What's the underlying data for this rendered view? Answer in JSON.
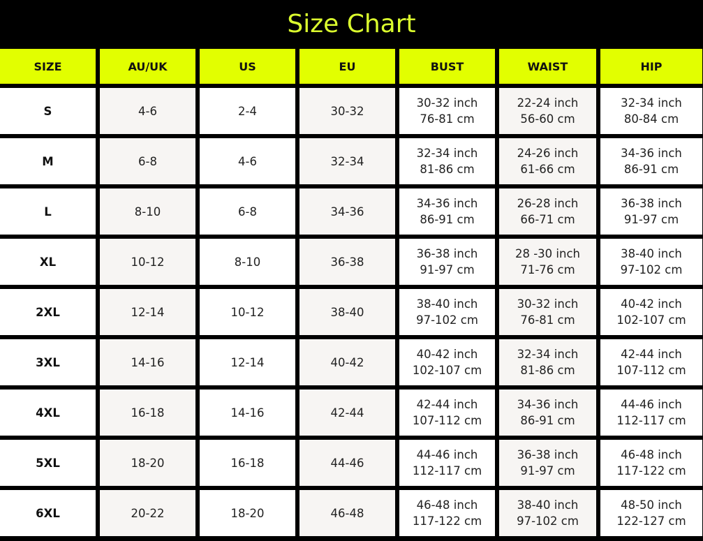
{
  "title": "Size Chart",
  "colors": {
    "accent": "#e2ff00",
    "title": "#dcff2e",
    "background": "#000000"
  },
  "headers": [
    "SIZE",
    "AU/UK",
    "US",
    "EU",
    "BUST",
    "WAIST",
    "HIP"
  ],
  "rows": [
    {
      "size": "S",
      "au_uk": "4-6",
      "us": "2-4",
      "eu": "30-32",
      "bust": [
        "30-32 inch",
        "76-81 cm"
      ],
      "waist": [
        "22-24 inch",
        "56-60 cm"
      ],
      "hip": [
        "32-34 inch",
        "80-84 cm"
      ]
    },
    {
      "size": "M",
      "au_uk": "6-8",
      "us": "4-6",
      "eu": "32-34",
      "bust": [
        "32-34 inch",
        "81-86 cm"
      ],
      "waist": [
        "24-26 inch",
        "61-66 cm"
      ],
      "hip": [
        "34-36 inch",
        "86-91 cm"
      ]
    },
    {
      "size": "L",
      "au_uk": "8-10",
      "us": "6-8",
      "eu": "34-36",
      "bust": [
        "34-36 inch",
        "86-91 cm"
      ],
      "waist": [
        "26-28 inch",
        "66-71 cm"
      ],
      "hip": [
        "36-38 inch",
        "91-97 cm"
      ]
    },
    {
      "size": "XL",
      "au_uk": "10-12",
      "us": "8-10",
      "eu": "36-38",
      "bust": [
        "36-38 inch",
        "91-97 cm"
      ],
      "waist": [
        "28 -30 inch",
        "71-76 cm"
      ],
      "hip": [
        "38-40 inch",
        "97-102 cm"
      ]
    },
    {
      "size": "2XL",
      "au_uk": "12-14",
      "us": "10-12",
      "eu": "38-40",
      "bust": [
        "38-40 inch",
        "97-102 cm"
      ],
      "waist": [
        "30-32 inch",
        "76-81 cm"
      ],
      "hip": [
        "40-42 inch",
        "102-107 cm"
      ]
    },
    {
      "size": "3XL",
      "au_uk": "14-16",
      "us": "12-14",
      "eu": "40-42",
      "bust": [
        "40-42 inch",
        "102-107 cm"
      ],
      "waist": [
        "32-34 inch",
        "81-86 cm"
      ],
      "hip": [
        "42-44 inch",
        "107-112 cm"
      ]
    },
    {
      "size": "4XL",
      "au_uk": "16-18",
      "us": "14-16",
      "eu": "42-44",
      "bust": [
        "42-44 inch",
        "107-112 cm"
      ],
      "waist": [
        "34-36 inch",
        "86-91 cm"
      ],
      "hip": [
        "44-46 inch",
        "112-117 cm"
      ]
    },
    {
      "size": "5XL",
      "au_uk": "18-20",
      "us": "16-18",
      "eu": "44-46",
      "bust": [
        "44-46 inch",
        "112-117 cm"
      ],
      "waist": [
        "36-38 inch",
        "91-97 cm"
      ],
      "hip": [
        "46-48 inch",
        "117-122 cm"
      ]
    },
    {
      "size": "6XL",
      "au_uk": "20-22",
      "us": "18-20",
      "eu": "46-48",
      "bust": [
        "46-48 inch",
        "117-122 cm"
      ],
      "waist": [
        "38-40 inch",
        "97-102 cm"
      ],
      "hip": [
        "48-50 inch",
        "122-127 cm"
      ]
    }
  ]
}
